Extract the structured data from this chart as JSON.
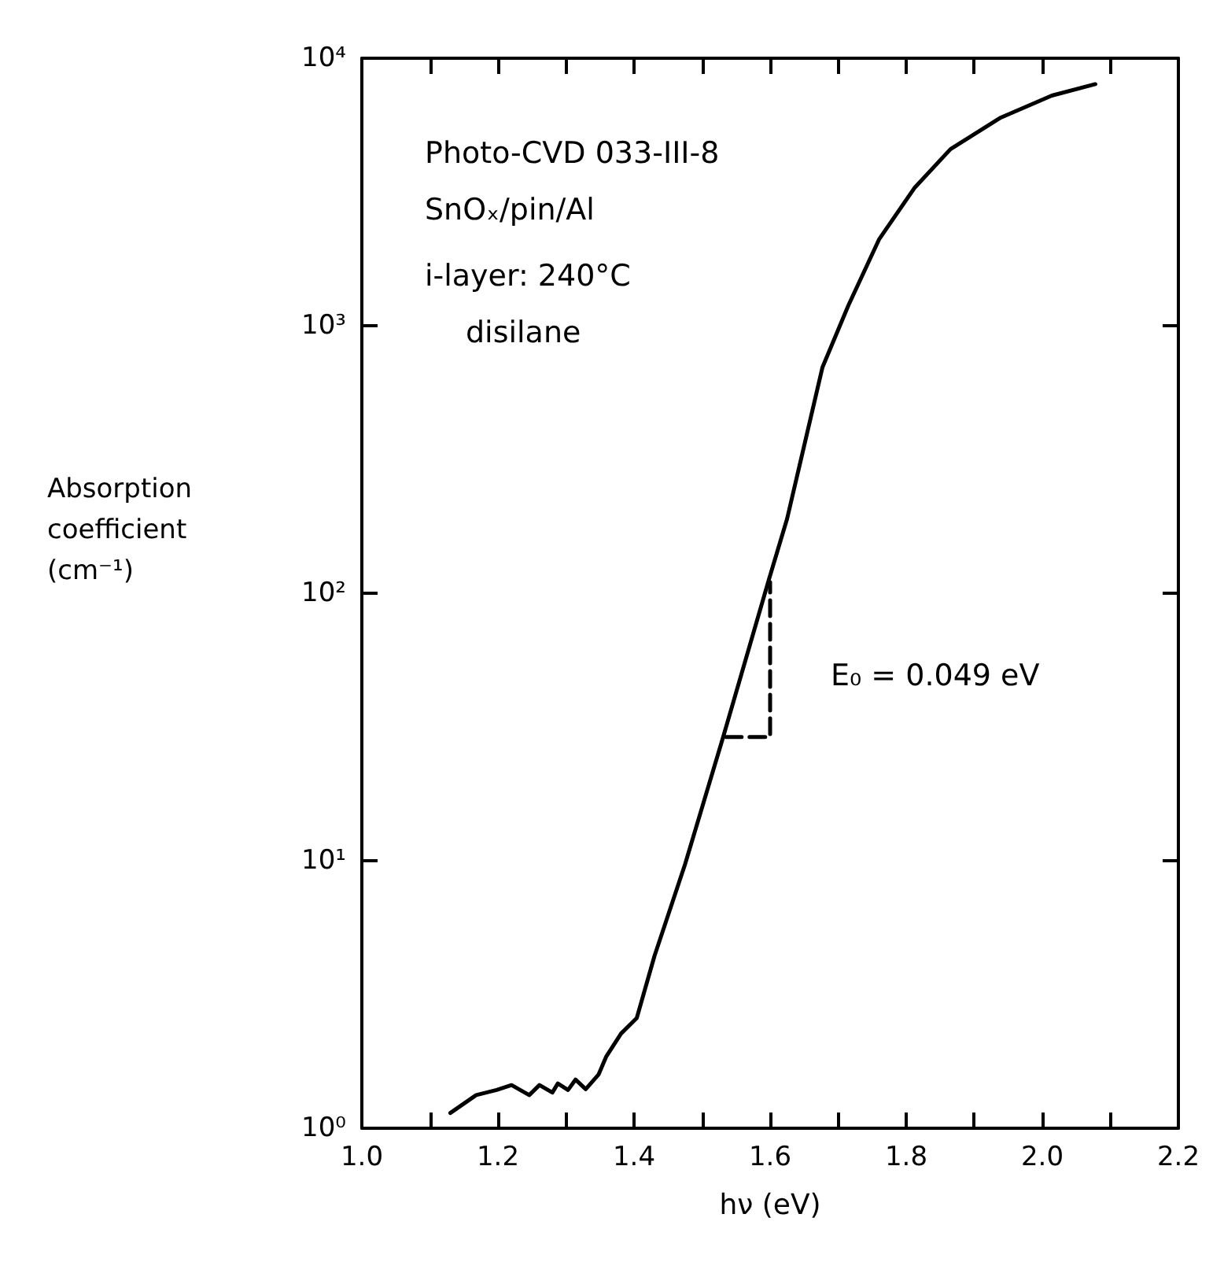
{
  "chart_data": {
    "type": "line",
    "xlabel": "hν (eV)",
    "ylabel": "Absorption coefficient (cm⁻¹)",
    "log": "y",
    "grid": false,
    "marker": "none",
    "xlim": [
      1.0,
      2.2
    ],
    "ylim": [
      1,
      10000
    ],
    "xticks": [
      {
        "value": 1.0,
        "label": "1.0"
      },
      {
        "value": 1.1,
        "label": null
      },
      1.2,
      {
        "value": 1.3,
        "label": null
      },
      1.4,
      {
        "value": 1.5,
        "label": null
      },
      1.6,
      {
        "value": 1.7,
        "label": null
      },
      1.8,
      {
        "value": 1.9,
        "label": null
      },
      {
        "value": 2.0,
        "label": "2.0"
      },
      {
        "value": 2.1,
        "label": null
      },
      2.2
    ],
    "yticks": [
      {
        "value": 1,
        "label": "10⁰"
      },
      {
        "value": 10,
        "label": "10¹"
      },
      {
        "value": 100,
        "label": "10²"
      },
      {
        "value": 1000,
        "label": "10³"
      },
      {
        "value": 10000,
        "label": "10⁴"
      }
    ],
    "series": [
      {
        "color": "#000000",
        "line_style": "solid",
        "x": [
          1.13,
          1.168,
          1.198,
          1.22,
          1.246,
          1.261,
          1.28,
          1.288,
          1.303,
          1.314,
          1.329,
          1.348,
          1.359,
          1.381,
          1.404,
          1.43,
          1.475,
          1.531,
          1.598,
          1.625,
          1.677,
          1.715,
          1.76,
          1.812,
          1.865,
          1.939,
          2.014,
          2.078
        ],
        "values": [
          1.14,
          1.33,
          1.39,
          1.45,
          1.33,
          1.45,
          1.36,
          1.47,
          1.39,
          1.52,
          1.4,
          1.59,
          1.85,
          2.26,
          2.58,
          4.4,
          9.7,
          29,
          112,
          190,
          700,
          1190,
          2100,
          3270,
          4570,
          6000,
          7250,
          8000
        ]
      },
      {
        "color": "#000000",
        "line_style": "dashed",
        "x": [
          1.535,
          1.6,
          1.6
        ],
        "values": [
          29,
          29,
          110
        ]
      }
    ],
    "annotations": [
      "Photo-CVD 033-III-8",
      "SnOₓ/pin/Al",
      "i-layer: 240°C",
      "disilane",
      "E₀ = 0.049 eV"
    ]
  }
}
